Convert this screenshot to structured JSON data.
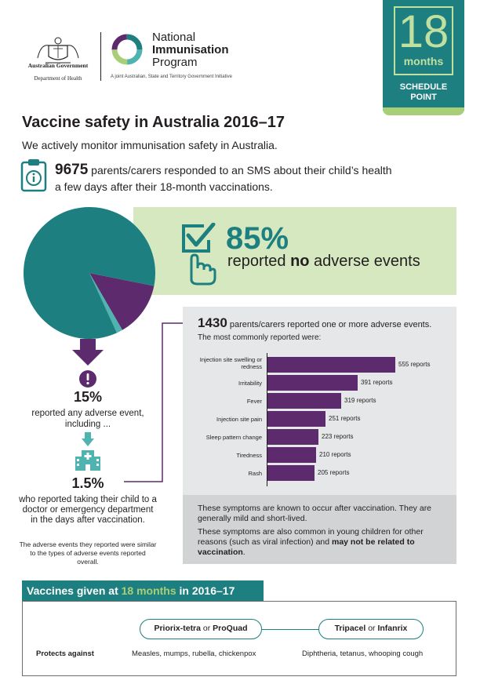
{
  "header": {
    "gov_name": "Australian Government",
    "gov_dept": "Department of Health",
    "nip_line1": "National",
    "nip_line2": "Immunisation",
    "nip_line3": "Program",
    "nip_tagline": "A joint Australian, State and Territory Government Initiative"
  },
  "badge": {
    "number": "18",
    "unit": "months",
    "schedule_line1": "SCHEDULE",
    "schedule_line2": "POINT"
  },
  "title": "Vaccine safety in Australia 2016–17",
  "intro": "We actively monitor immunisation safety in Australia.",
  "responders": {
    "count": "9675",
    "line1_rest": " parents/carers responded to an SMS about their child’s health",
    "line2": "a few days after their 18-month vaccinations."
  },
  "no_adverse": {
    "percent": "85%",
    "text_pre": "reported ",
    "text_bold": "no",
    "text_post": " adverse events"
  },
  "any_adverse": {
    "percent": "15%",
    "text": "reported any adverse event, including ..."
  },
  "medical": {
    "percent": "1.5%",
    "text": "who reported taking their child to a doctor or emergency department in the days after vaccination.",
    "note": "The adverse events they reported were similar to the types of adverse events reported overall."
  },
  "reports": {
    "count": "1430",
    "count_rest": " parents/carers reported one or more adverse events.",
    "subtitle": "The most commonly reported were:",
    "note1": "These symptoms are known to occur after vaccination. They are generally mild and short-lived.",
    "note2_pre": "These symptoms are also common in young children for other reasons (such as viral infection) and ",
    "note2_bold": "may not be related to vaccination",
    "note2_post": "."
  },
  "chart_data": [
    {
      "type": "pie",
      "categories": [
        "No adverse events",
        "Any adverse event",
        "Doctor or emergency department"
      ],
      "values": [
        85,
        13.5,
        1.5
      ],
      "colors": [
        "#1d7f7f",
        "#5e2a6e",
        "#4fb3b0"
      ]
    },
    {
      "type": "bar",
      "orientation": "horizontal",
      "categories": [
        "Injection site swelling or redness",
        "Irritability",
        "Fever",
        "Injection site pain",
        "Sleep pattern change",
        "Tiredness",
        "Rash"
      ],
      "values": [
        555,
        391,
        319,
        251,
        223,
        210,
        205
      ],
      "value_labels": [
        "555 reports",
        "391 reports",
        "319 reports",
        "251 reports",
        "223 reports",
        "210 reports",
        "205 reports"
      ],
      "bar_color": "#5e2a6e"
    }
  ],
  "vaccines": {
    "header_pre": "Vaccines given at ",
    "header_hl": "18 months",
    "header_post": " in 2016–17",
    "pill1_a": "Priorix-tetra",
    "pill1_or": " or ",
    "pill1_b": "ProQuad",
    "pill2_a": "Tripacel",
    "pill2_or": " or ",
    "pill2_b": "Infanrix",
    "protects_label": "Protects against",
    "protects1": "Measles, mumps, rubella, chickenpox",
    "protects2": "Diphtheria, tetanus, whooping cough"
  },
  "colors": {
    "teal": "#1d7f7f",
    "purple": "#5e2a6e",
    "light_green": "#d5e8bf",
    "green_accent": "#a8cf78",
    "light_teal": "#4fb3b0"
  }
}
